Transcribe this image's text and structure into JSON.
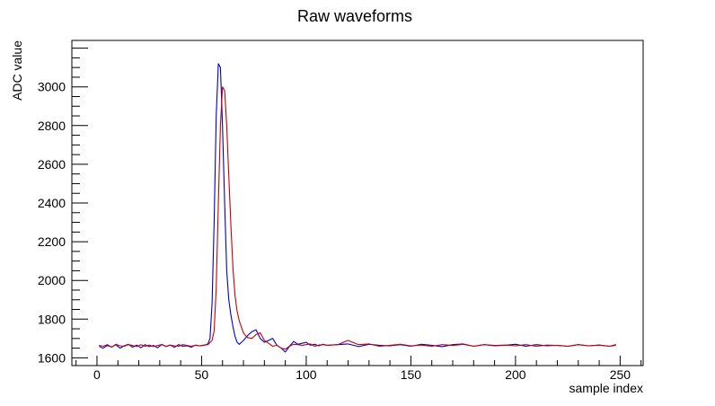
{
  "chart_data": {
    "type": "line",
    "title": "Raw waveforms",
    "xlabel": "sample index",
    "ylabel": "ADC value",
    "xlim": [
      -12,
      261
    ],
    "ylim": [
      1560,
      3240
    ],
    "xticks": [
      0,
      50,
      100,
      150,
      200,
      250
    ],
    "xtick_labels": [
      "0",
      "50",
      "100",
      "150",
      "200",
      "250"
    ],
    "yticks": [
      1600,
      1800,
      2000,
      2200,
      2400,
      2600,
      2800,
      3000
    ],
    "ytick_labels": [
      "1600",
      "1800",
      "2000",
      "2200",
      "2400",
      "2600",
      "2800",
      "3000"
    ],
    "grid": false,
    "legend": "none",
    "series": [
      {
        "color": "#0000cc",
        "x": [
          1,
          3,
          5,
          7,
          9,
          11,
          13,
          15,
          17,
          19,
          21,
          23,
          25,
          27,
          29,
          31,
          33,
          35,
          37,
          39,
          41,
          43,
          45,
          47,
          49,
          51,
          53,
          54,
          55,
          56,
          57,
          58,
          59,
          60,
          61,
          62,
          63,
          64,
          65,
          66,
          67,
          68,
          70,
          72,
          74,
          76,
          78,
          80,
          82,
          84,
          86,
          88,
          90,
          92,
          94,
          96,
          98,
          100,
          102,
          104,
          106,
          108,
          110,
          115,
          120,
          125,
          130,
          135,
          140,
          145,
          150,
          155,
          160,
          165,
          170,
          175,
          180,
          185,
          190,
          195,
          200,
          205,
          210,
          215,
          220,
          225,
          230,
          235,
          240,
          245,
          248
        ],
        "y": [
          1660,
          1650,
          1665,
          1655,
          1668,
          1650,
          1662,
          1670,
          1655,
          1666,
          1652,
          1668,
          1658,
          1664,
          1652,
          1670,
          1658,
          1666,
          1654,
          1668,
          1660,
          1662,
          1655,
          1666,
          1662,
          1664,
          1672,
          1700,
          1880,
          2300,
          2850,
          3120,
          3100,
          2800,
          2400,
          2050,
          1900,
          1820,
          1760,
          1710,
          1680,
          1670,
          1690,
          1715,
          1735,
          1745,
          1700,
          1680,
          1690,
          1700,
          1665,
          1650,
          1630,
          1660,
          1685,
          1670,
          1675,
          1680,
          1665,
          1670,
          1662,
          1670,
          1665,
          1668,
          1672,
          1658,
          1670,
          1665,
          1662,
          1668,
          1660,
          1670,
          1665,
          1658,
          1668,
          1672,
          1660,
          1668,
          1662,
          1665,
          1670,
          1660,
          1668,
          1662,
          1665,
          1660,
          1668,
          1662,
          1666,
          1660,
          1668
        ]
      },
      {
        "color": "#cc0000",
        "x": [
          1,
          3,
          5,
          7,
          9,
          11,
          13,
          15,
          17,
          19,
          21,
          23,
          25,
          27,
          29,
          31,
          33,
          35,
          37,
          39,
          41,
          43,
          45,
          47,
          49,
          51,
          53,
          55,
          56,
          57,
          58,
          59,
          60,
          61,
          62,
          63,
          64,
          65,
          66,
          67,
          68,
          69,
          70,
          71,
          72,
          74,
          76,
          78,
          80,
          82,
          84,
          86,
          88,
          90,
          92,
          94,
          96,
          98,
          100,
          102,
          104,
          106,
          108,
          110,
          115,
          120,
          125,
          130,
          135,
          140,
          145,
          150,
          155,
          160,
          165,
          170,
          175,
          180,
          185,
          190,
          195,
          200,
          205,
          210,
          215,
          220,
          225,
          230,
          235,
          240,
          245,
          248
        ],
        "y": [
          1665,
          1660,
          1668,
          1655,
          1670,
          1662,
          1660,
          1668,
          1664,
          1658,
          1668,
          1660,
          1666,
          1658,
          1664,
          1668,
          1660,
          1666,
          1662,
          1660,
          1668,
          1664,
          1660,
          1665,
          1662,
          1666,
          1668,
          1690,
          1740,
          1960,
          2400,
          2800,
          3000,
          2980,
          2800,
          2540,
          2280,
          2060,
          1920,
          1840,
          1790,
          1760,
          1730,
          1715,
          1705,
          1700,
          1720,
          1730,
          1690,
          1675,
          1660,
          1665,
          1650,
          1645,
          1660,
          1670,
          1668,
          1665,
          1668,
          1672,
          1660,
          1666,
          1668,
          1665,
          1668,
          1690,
          1668,
          1672,
          1660,
          1665,
          1670,
          1662,
          1666,
          1660,
          1668,
          1664,
          1670,
          1660,
          1668,
          1664,
          1666,
          1662,
          1668,
          1660,
          1666,
          1664,
          1660,
          1668,
          1662,
          1666,
          1660,
          1665
        ]
      }
    ]
  }
}
